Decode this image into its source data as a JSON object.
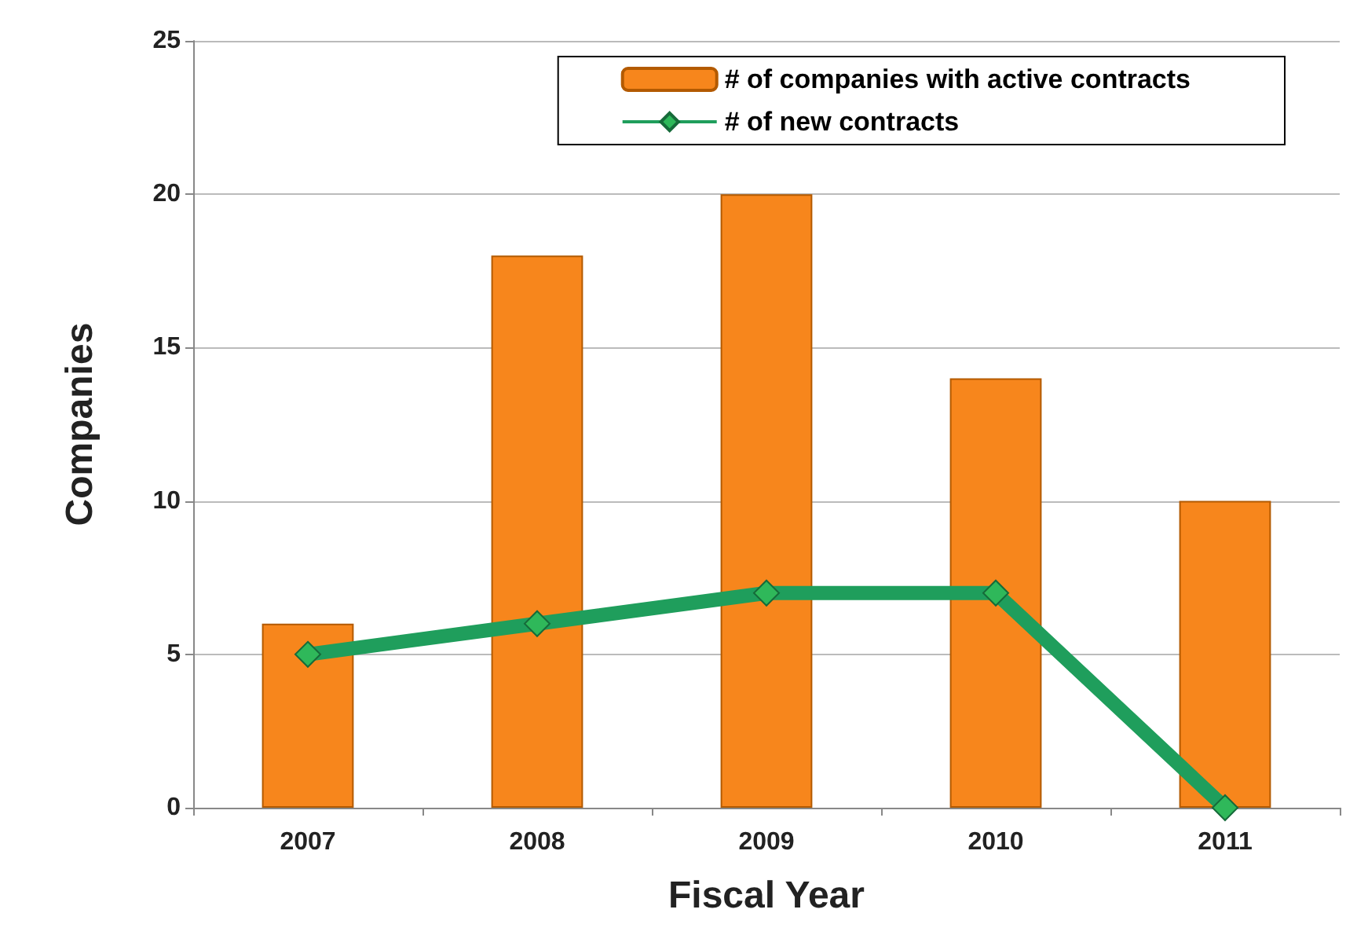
{
  "chart_data": {
    "type": "bar",
    "xlabel": "Fiscal Year",
    "ylabel": "Companies",
    "categories": [
      "2007",
      "2008",
      "2009",
      "2010",
      "2011"
    ],
    "series": [
      {
        "name": "# of companies with active contracts",
        "color": "#f7861c",
        "values": [
          6,
          18,
          20,
          14,
          10
        ]
      },
      {
        "name": "# of new contracts",
        "type": "line",
        "color": "#1f9e5c",
        "values": [
          5,
          6,
          7,
          7,
          0
        ],
        "marker": "diamond"
      }
    ],
    "ylim": [
      0,
      25
    ],
    "yticks": [
      0,
      5,
      10,
      15,
      20,
      25
    ],
    "grid": "y",
    "legend": "top right"
  }
}
